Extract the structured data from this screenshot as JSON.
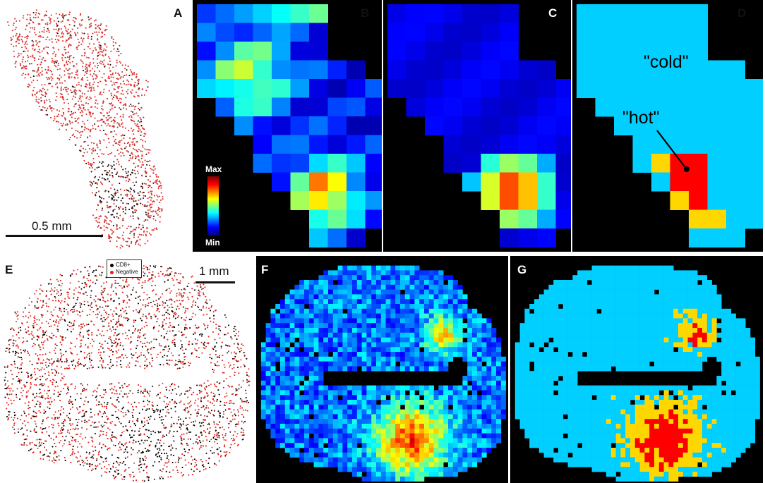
{
  "figure": {
    "panels": [
      {
        "id": "A",
        "letter": "A"
      },
      {
        "id": "B",
        "letter": "B"
      },
      {
        "id": "C",
        "letter": "C"
      },
      {
        "id": "D",
        "letter": "D"
      },
      {
        "id": "E",
        "letter": "E"
      },
      {
        "id": "F",
        "letter": "F"
      },
      {
        "id": "G",
        "letter": "G"
      }
    ]
  },
  "panel_a": {
    "scalebar_label": "0.5 mm",
    "colors": {
      "negative": "#d9302c",
      "cd8": "#111111"
    }
  },
  "panel_b": {
    "colorbar": {
      "max_label": "Max",
      "min_label": "Min"
    }
  },
  "panel_d": {
    "label_cold": "\"cold\"",
    "label_hot": "\"hot\"",
    "colors": {
      "cold": "#00cfff",
      "warm": "#ffd700",
      "hot": "#ff0000"
    }
  },
  "panel_e": {
    "scalebar_label": "1 mm",
    "legend": [
      {
        "label": "CD8+",
        "color": "#000000"
      },
      {
        "label": "Negative",
        "color": "#e0241d"
      }
    ]
  },
  "colormap": {
    "name": "jet"
  }
}
